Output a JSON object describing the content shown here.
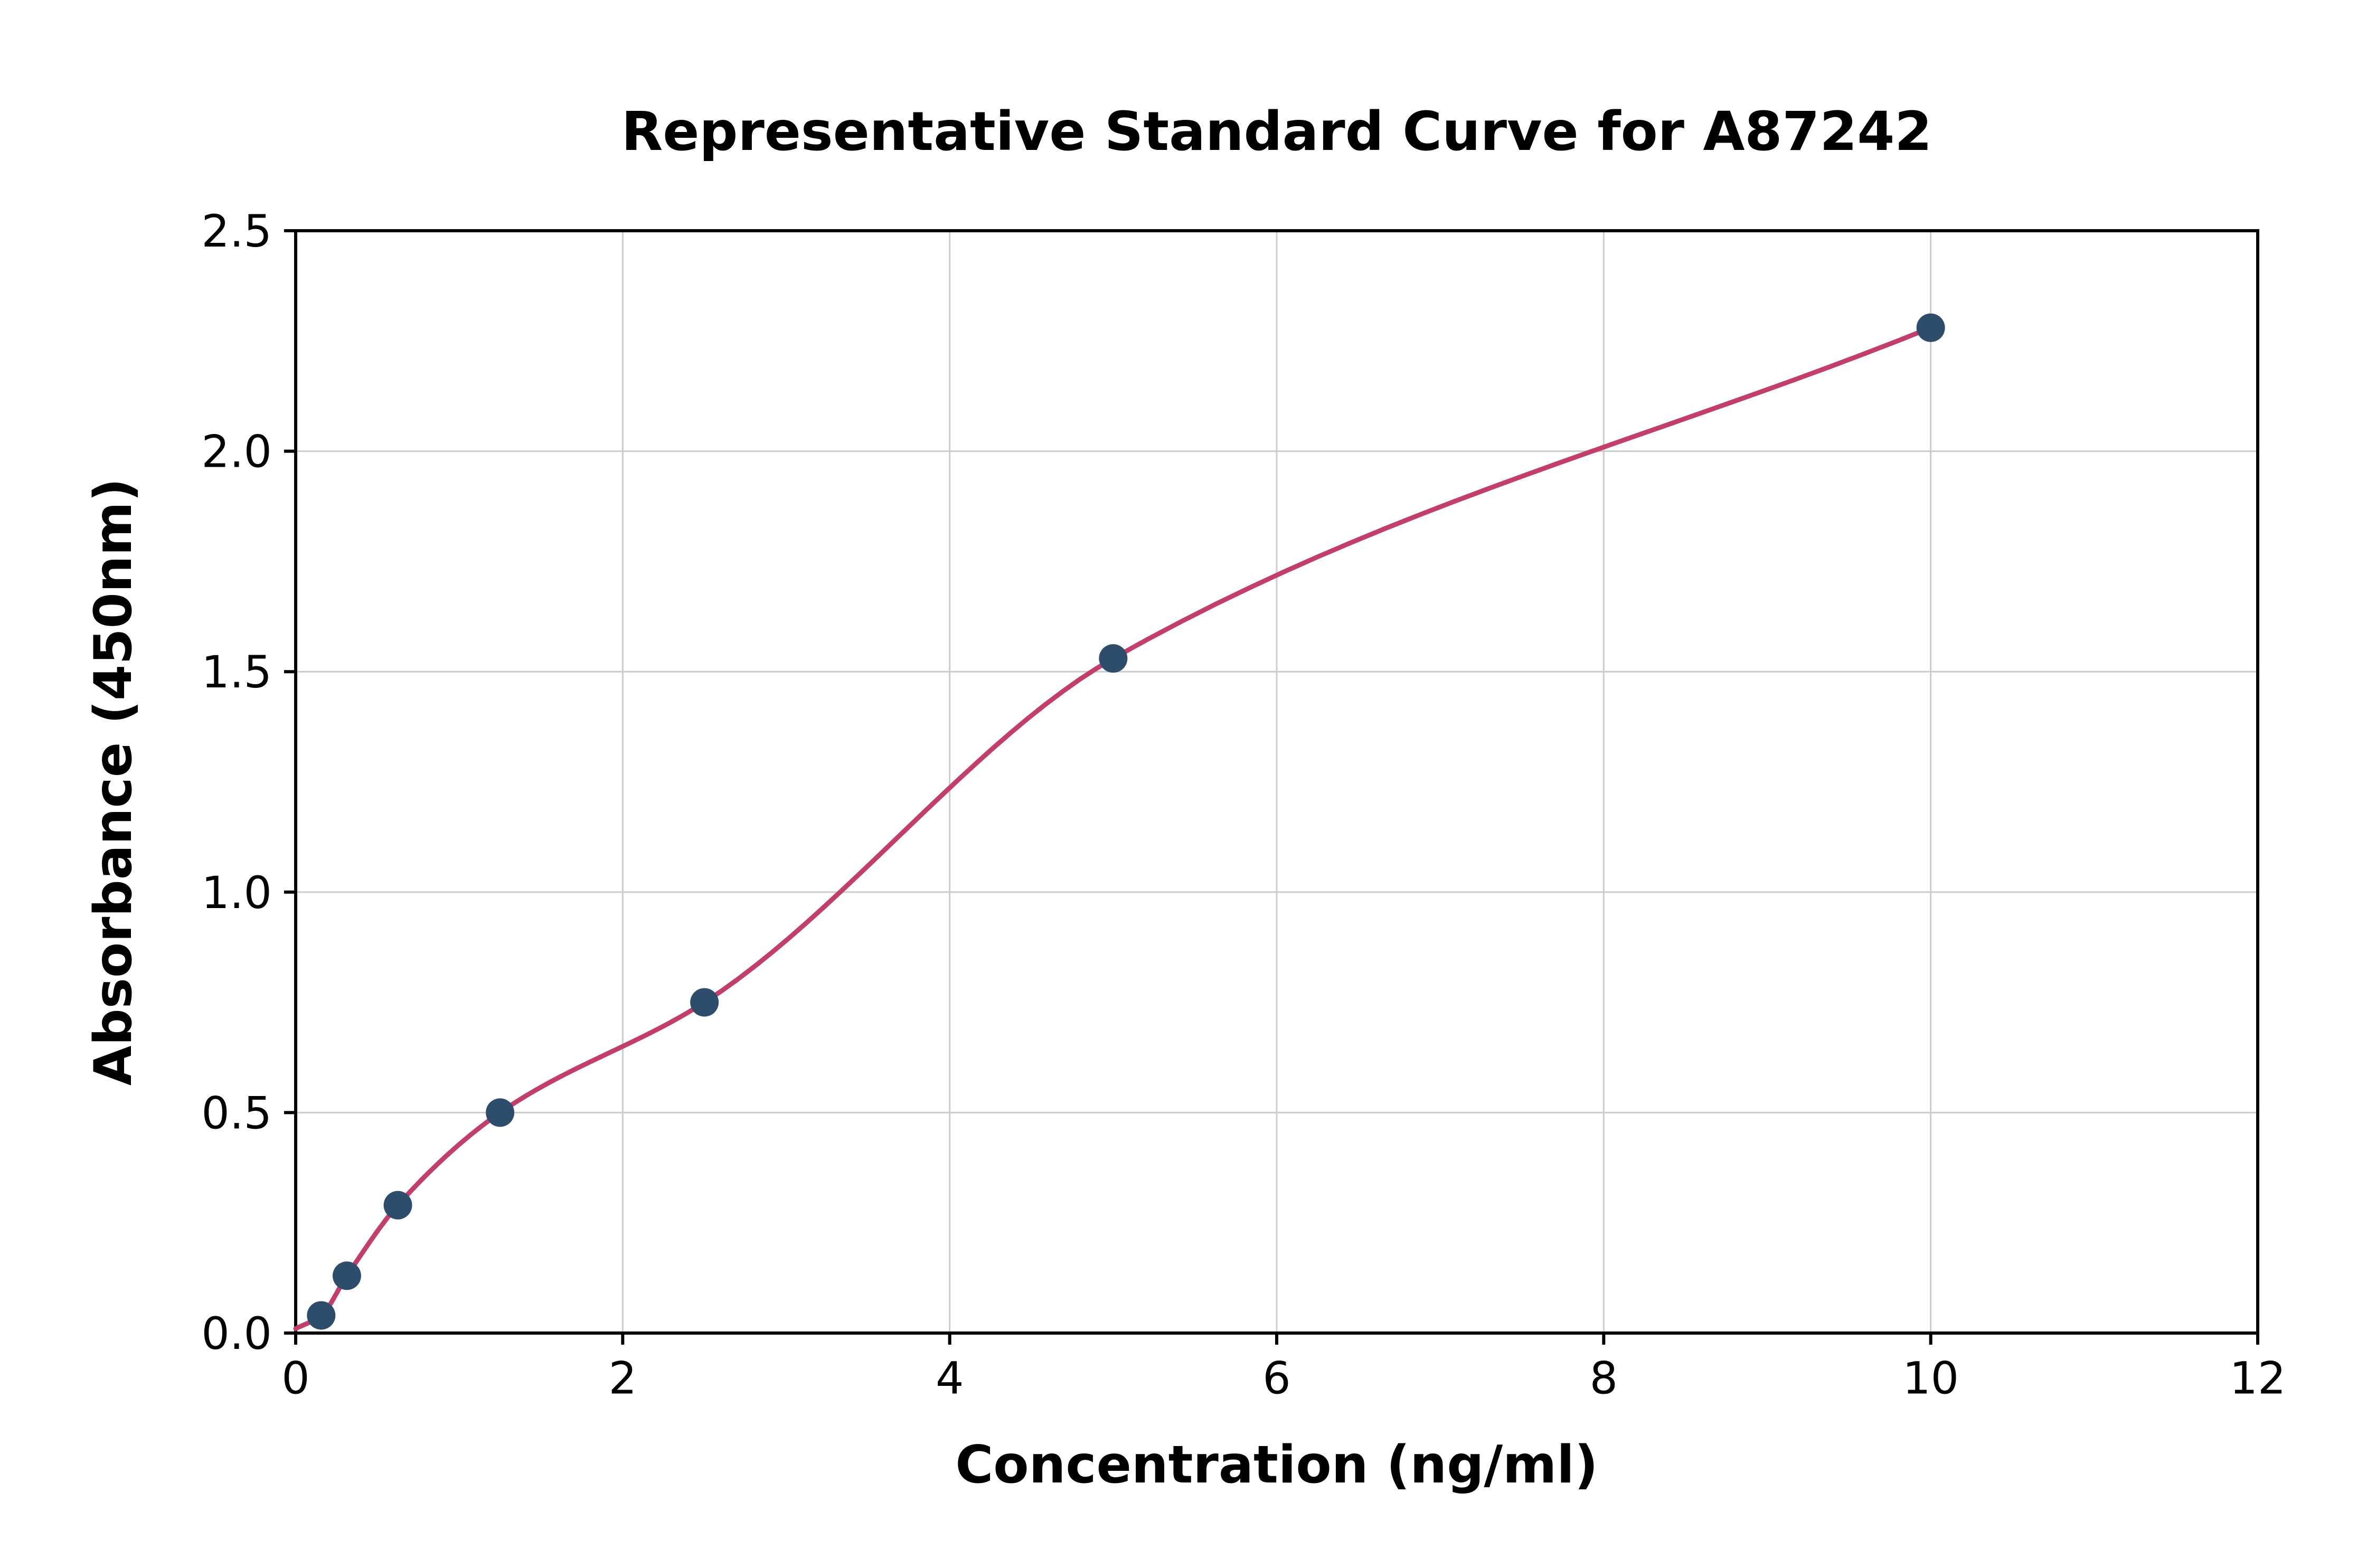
{
  "chart_data": {
    "type": "scatter",
    "title": "Representative Standard Curve for A87242",
    "xlabel": "Concentration (ng/ml)",
    "ylabel": "Absorbance (450nm)",
    "xlim": [
      0,
      12
    ],
    "ylim": [
      0,
      2.5
    ],
    "x_ticks": [
      0,
      2,
      4,
      6,
      8,
      10,
      12
    ],
    "x_tick_labels": [
      "0",
      "2",
      "4",
      "6",
      "8",
      "10",
      "12"
    ],
    "y_ticks": [
      0.0,
      0.5,
      1.0,
      1.5,
      2.0,
      2.5
    ],
    "y_tick_labels": [
      "0.0",
      "0.5",
      "1.0",
      "1.5",
      "2.0",
      "2.5"
    ],
    "grid": true,
    "legend": "none",
    "points": [
      {
        "x": 0.156,
        "y": 0.04
      },
      {
        "x": 0.313,
        "y": 0.13
      },
      {
        "x": 0.625,
        "y": 0.29
      },
      {
        "x": 1.25,
        "y": 0.5
      },
      {
        "x": 2.5,
        "y": 0.75
      },
      {
        "x": 5,
        "y": 1.53
      },
      {
        "x": 10,
        "y": 2.28
      }
    ],
    "fit_curve_start": {
      "x": 0,
      "y": 0.01
    },
    "fit_curve_end_x": 10,
    "colors": {
      "point_color": "#2e4d6b",
      "curve_color": "#c23f6d",
      "grid_color": "#cccccc",
      "axis_color": "#000000",
      "background": "#ffffff"
    }
  }
}
